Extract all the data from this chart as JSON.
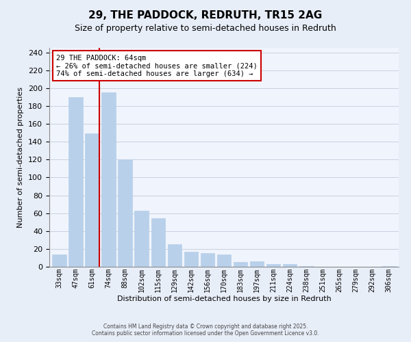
{
  "title": "29, THE PADDOCK, REDRUTH, TR15 2AG",
  "subtitle": "Size of property relative to semi-detached houses in Redruth",
  "xlabel": "Distribution of semi-detached houses by size in Redruth",
  "ylabel": "Number of semi-detached properties",
  "bar_labels": [
    "33sqm",
    "47sqm",
    "61sqm",
    "74sqm",
    "88sqm",
    "102sqm",
    "115sqm",
    "129sqm",
    "142sqm",
    "156sqm",
    "170sqm",
    "183sqm",
    "197sqm",
    "211sqm",
    "224sqm",
    "238sqm",
    "251sqm",
    "265sqm",
    "279sqm",
    "292sqm",
    "306sqm"
  ],
  "bar_values": [
    14,
    190,
    149,
    195,
    120,
    63,
    54,
    25,
    17,
    15,
    14,
    5,
    6,
    3,
    3,
    1,
    0,
    0,
    0,
    0,
    1
  ],
  "bar_color": "#b8d0ea",
  "bar_edge_color": "#b8d0ea",
  "vline_x_index": 2,
  "vline_color": "#cc0000",
  "ylim": [
    0,
    245
  ],
  "yticks": [
    0,
    20,
    40,
    60,
    80,
    100,
    120,
    140,
    160,
    180,
    200,
    220,
    240
  ],
  "annotation_title": "29 THE PADDOCK: 64sqm",
  "annotation_line1": "← 26% of semi-detached houses are smaller (224)",
  "annotation_line2": "74% of semi-detached houses are larger (634) →",
  "footer_line1": "Contains HM Land Registry data © Crown copyright and database right 2025.",
  "footer_line2": "Contains public sector information licensed under the Open Government Licence v3.0.",
  "background_color": "#e8eef8",
  "plot_bg_color": "#f0f4fc",
  "grid_color": "#c8d0e0",
  "annotation_box_color": "#cc0000",
  "title_fontsize": 11,
  "subtitle_fontsize": 9
}
